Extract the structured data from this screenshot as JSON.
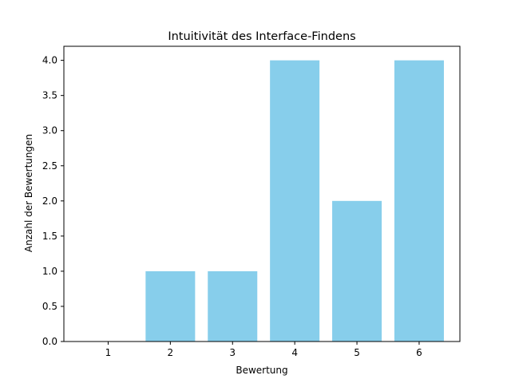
{
  "chart_data": {
    "type": "bar",
    "title": "Intuitivität des Interface-Findens",
    "xlabel": "Bewertung",
    "ylabel": "Anzahl der Bewertungen",
    "categories": [
      "1",
      "2",
      "3",
      "4",
      "5",
      "6"
    ],
    "values": [
      0,
      1,
      1,
      4,
      2,
      4
    ],
    "ylim": [
      0,
      4.2
    ],
    "yticks": [
      "0.0",
      "0.5",
      "1.0",
      "1.5",
      "2.0",
      "2.5",
      "3.0",
      "3.5",
      "4.0"
    ],
    "bar_color": "#87ceeb",
    "grid": false
  }
}
